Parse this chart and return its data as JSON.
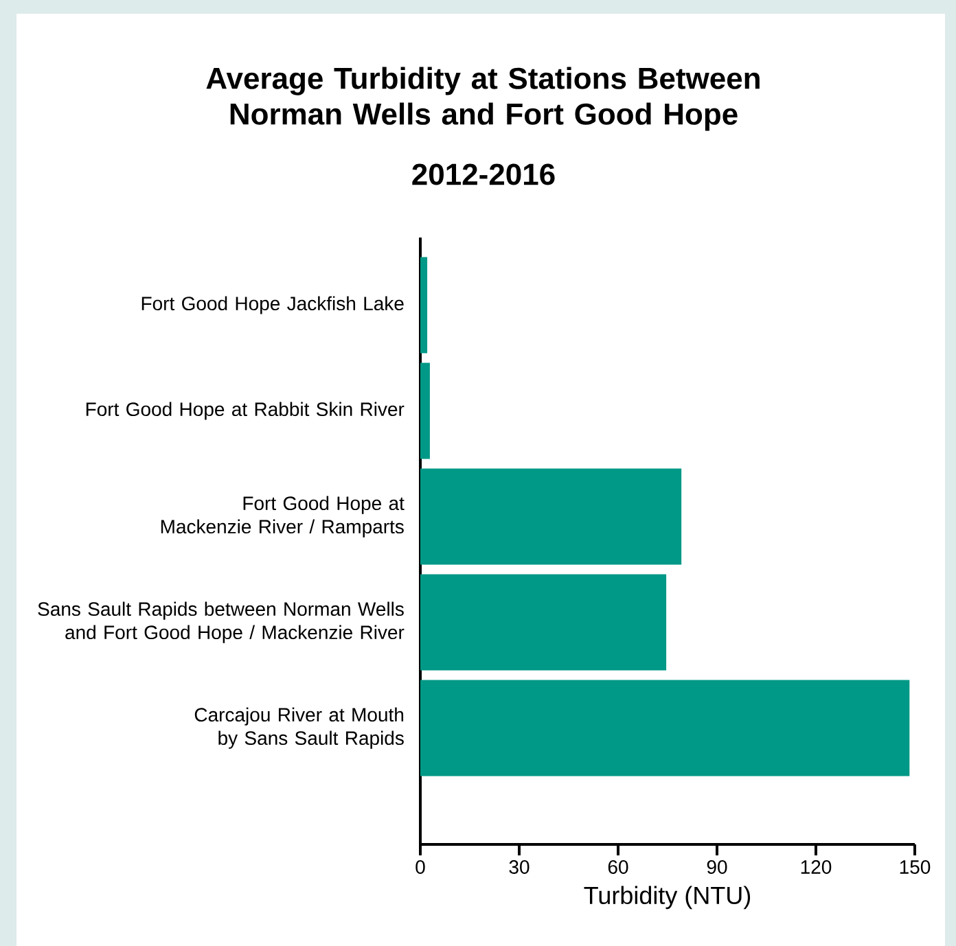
{
  "chart_data": {
    "type": "bar",
    "orientation": "horizontal",
    "title": "Average Turbidity at Stations Between Norman Wells and Fort Good Hope",
    "subtitle": "2012-2016",
    "xlabel": "Turbidity (NTU)",
    "categories": [
      "Fort Good Hope Jackfish Lake",
      "Fort Good Hope at Rabbit Skin River",
      "Fort Good Hope at Mackenzie River / Ramparts",
      "Sans Sault Rapids between Norman Wells and Fort Good Hope / Mackenzie River",
      "Carcajou River at Mouth by Sans Sault Rapids"
    ],
    "values": [
      2.1,
      2.9,
      79.2,
      74.6,
      148.4
    ],
    "color": "#009886",
    "xlim": [
      0,
      150
    ],
    "xticks": [
      0,
      30,
      60,
      90,
      120,
      150
    ]
  }
}
